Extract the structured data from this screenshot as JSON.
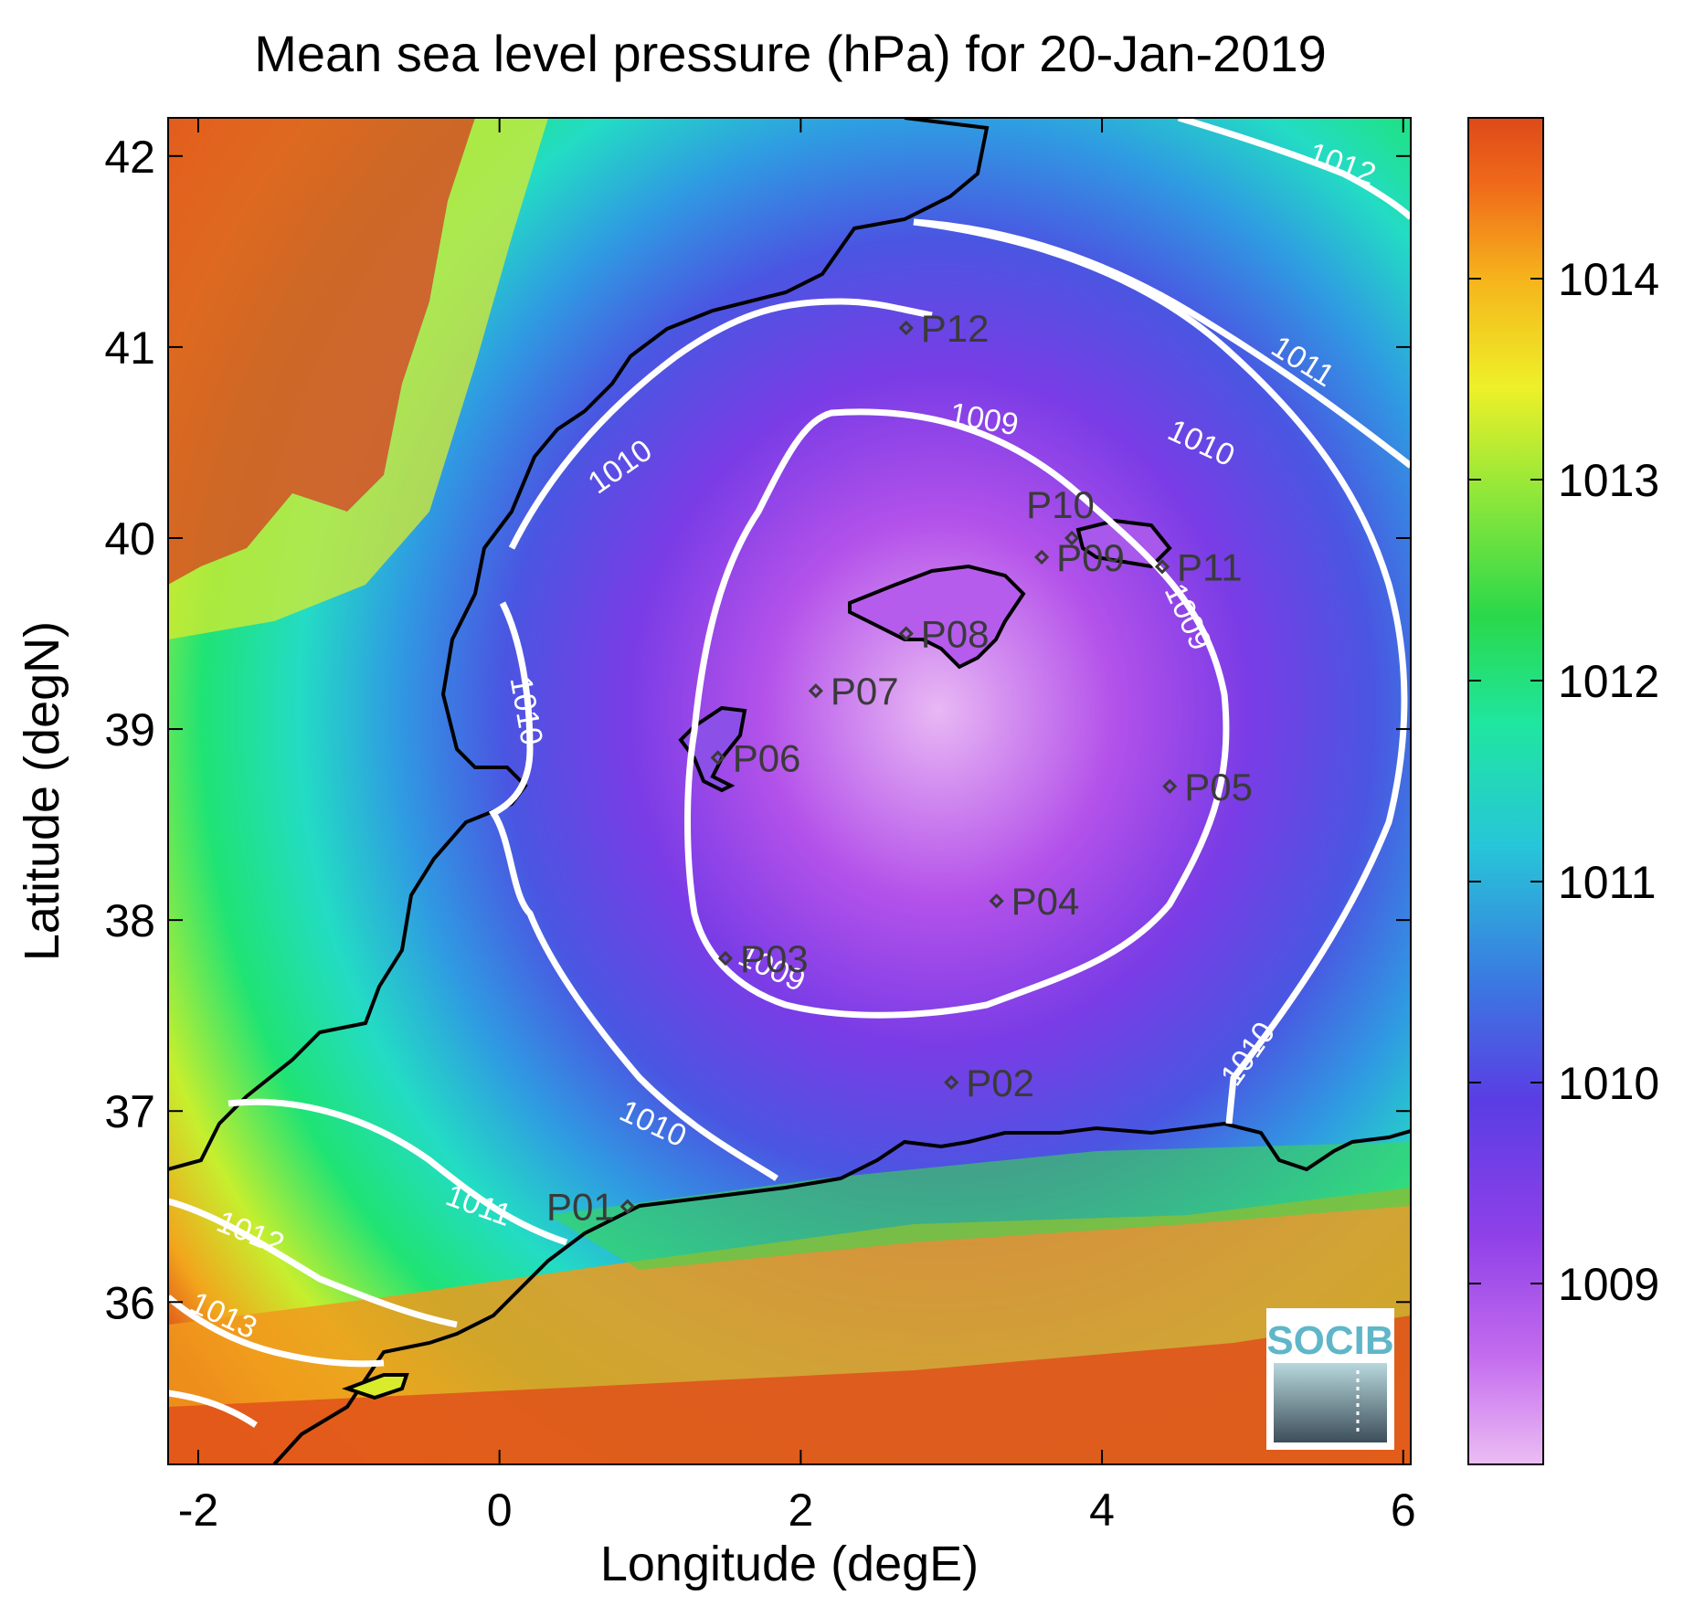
{
  "title": "Mean sea level pressure (hPa) for 20-Jan-2019",
  "xlabel": "Longitude (degE)",
  "ylabel": "Latitude (degN)",
  "logo": "SOCIB",
  "chart_data": {
    "type": "heatmap",
    "variable": "Mean sea level pressure",
    "units": "hPa",
    "date": "20-Jan-2019",
    "xlim": [
      -2.2,
      6.05
    ],
    "ylim": [
      35.15,
      42.2
    ],
    "x_ticks": [
      -2,
      0,
      2,
      4,
      6
    ],
    "x_tick_labels": [
      "-2",
      "0",
      "2",
      "4",
      "6"
    ],
    "y_ticks": [
      36,
      37,
      38,
      39,
      40,
      41,
      42
    ],
    "y_tick_labels": [
      "36",
      "37",
      "38",
      "39",
      "40",
      "41",
      "42"
    ],
    "colorbar": {
      "range": [
        1008.1,
        1014.8
      ],
      "ticks": [
        1009,
        1010,
        1011,
        1012,
        1013,
        1014
      ],
      "tick_labels": [
        "1009",
        "1010",
        "1011",
        "1012",
        "1013",
        "1014"
      ],
      "colors": [
        "#ecbdf4",
        "#b74fea",
        "#6a39e6",
        "#3a6fe0",
        "#28d7cf",
        "#1ee86e",
        "#34d63e",
        "#d8f22c",
        "#f6c51a",
        "#f4731a",
        "#dd4a1a"
      ]
    },
    "contours": {
      "color": "#ffffff",
      "labels": [
        "1009",
        "1009",
        "1009",
        "1010",
        "1010",
        "1010",
        "1010",
        "1010",
        "1011",
        "1011",
        "1012",
        "1012",
        "1013"
      ]
    },
    "points": [
      {
        "name": "P01",
        "lon": 0.85,
        "lat": 36.5
      },
      {
        "name": "P02",
        "lon": 3.0,
        "lat": 37.15
      },
      {
        "name": "P03",
        "lon": 1.5,
        "lat": 37.8
      },
      {
        "name": "P04",
        "lon": 3.3,
        "lat": 38.1
      },
      {
        "name": "P05",
        "lon": 4.45,
        "lat": 38.7
      },
      {
        "name": "P06",
        "lon": 1.45,
        "lat": 38.85
      },
      {
        "name": "P07",
        "lon": 2.1,
        "lat": 39.2
      },
      {
        "name": "P08",
        "lon": 2.7,
        "lat": 39.5
      },
      {
        "name": "P09",
        "lon": 3.6,
        "lat": 39.9
      },
      {
        "name": "P10",
        "lon": 3.8,
        "lat": 40.0
      },
      {
        "name": "P11",
        "lon": 4.4,
        "lat": 39.85
      },
      {
        "name": "P12",
        "lon": 2.7,
        "lat": 41.1
      }
    ],
    "grid": false,
    "legend": "colorbar-right"
  }
}
